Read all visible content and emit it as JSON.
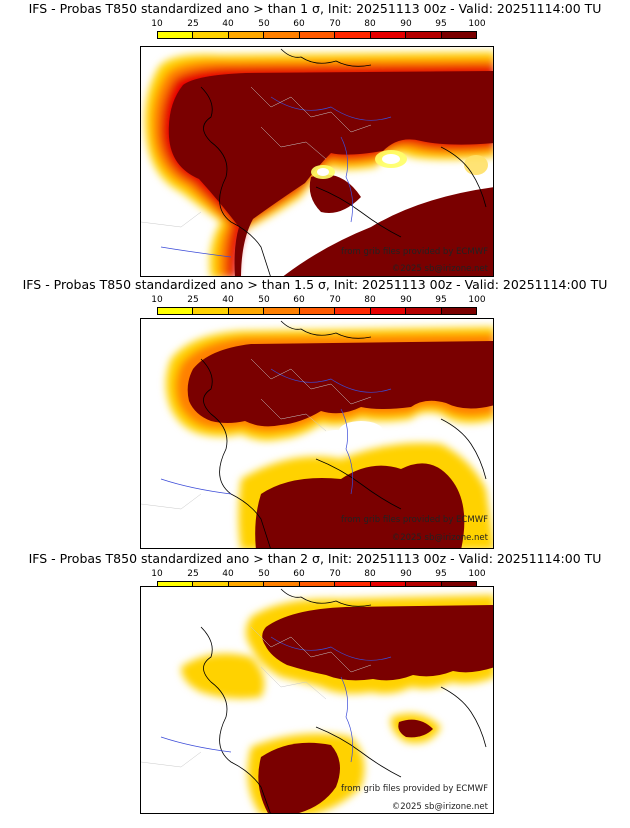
{
  "legend": {
    "ticks": [
      "10",
      "25",
      "40",
      "50",
      "60",
      "70",
      "80",
      "90",
      "95",
      "100"
    ],
    "colors": [
      "#ffff00",
      "#ffd200",
      "#ffa800",
      "#ff8000",
      "#ff5a00",
      "#ff2800",
      "#e60000",
      "#b40000",
      "#7a0000"
    ]
  },
  "colors": {
    "max_prob": "#7a0000",
    "coast": "#000000",
    "rivers": "#3b4bd8",
    "borders": "#c8c8c8"
  },
  "panels": [
    {
      "title": "IFS - Probas T850  standardized ano > than 1 σ, Init: 20251113 00z - Valid: 20251114:00 TU",
      "source": "from grib files provided by ECMWF",
      "copyright": "©2025 sb@irizone.net"
    },
    {
      "title": "IFS - Probas T850  standardized ano > than 1.5 σ, Init: 20251113 00z - Valid: 20251114:00 TU",
      "source": "from grib files provided by ECMWF",
      "copyright": "©2025 sb@irizone.net"
    },
    {
      "title": "IFS - Probas T850  standardized ano > than 2 σ, Init: 20251113 00z - Valid: 20251114:00 TU",
      "source": "from grib files provided by ECMWF",
      "copyright": "©2025 sb@irizone.net"
    }
  ]
}
